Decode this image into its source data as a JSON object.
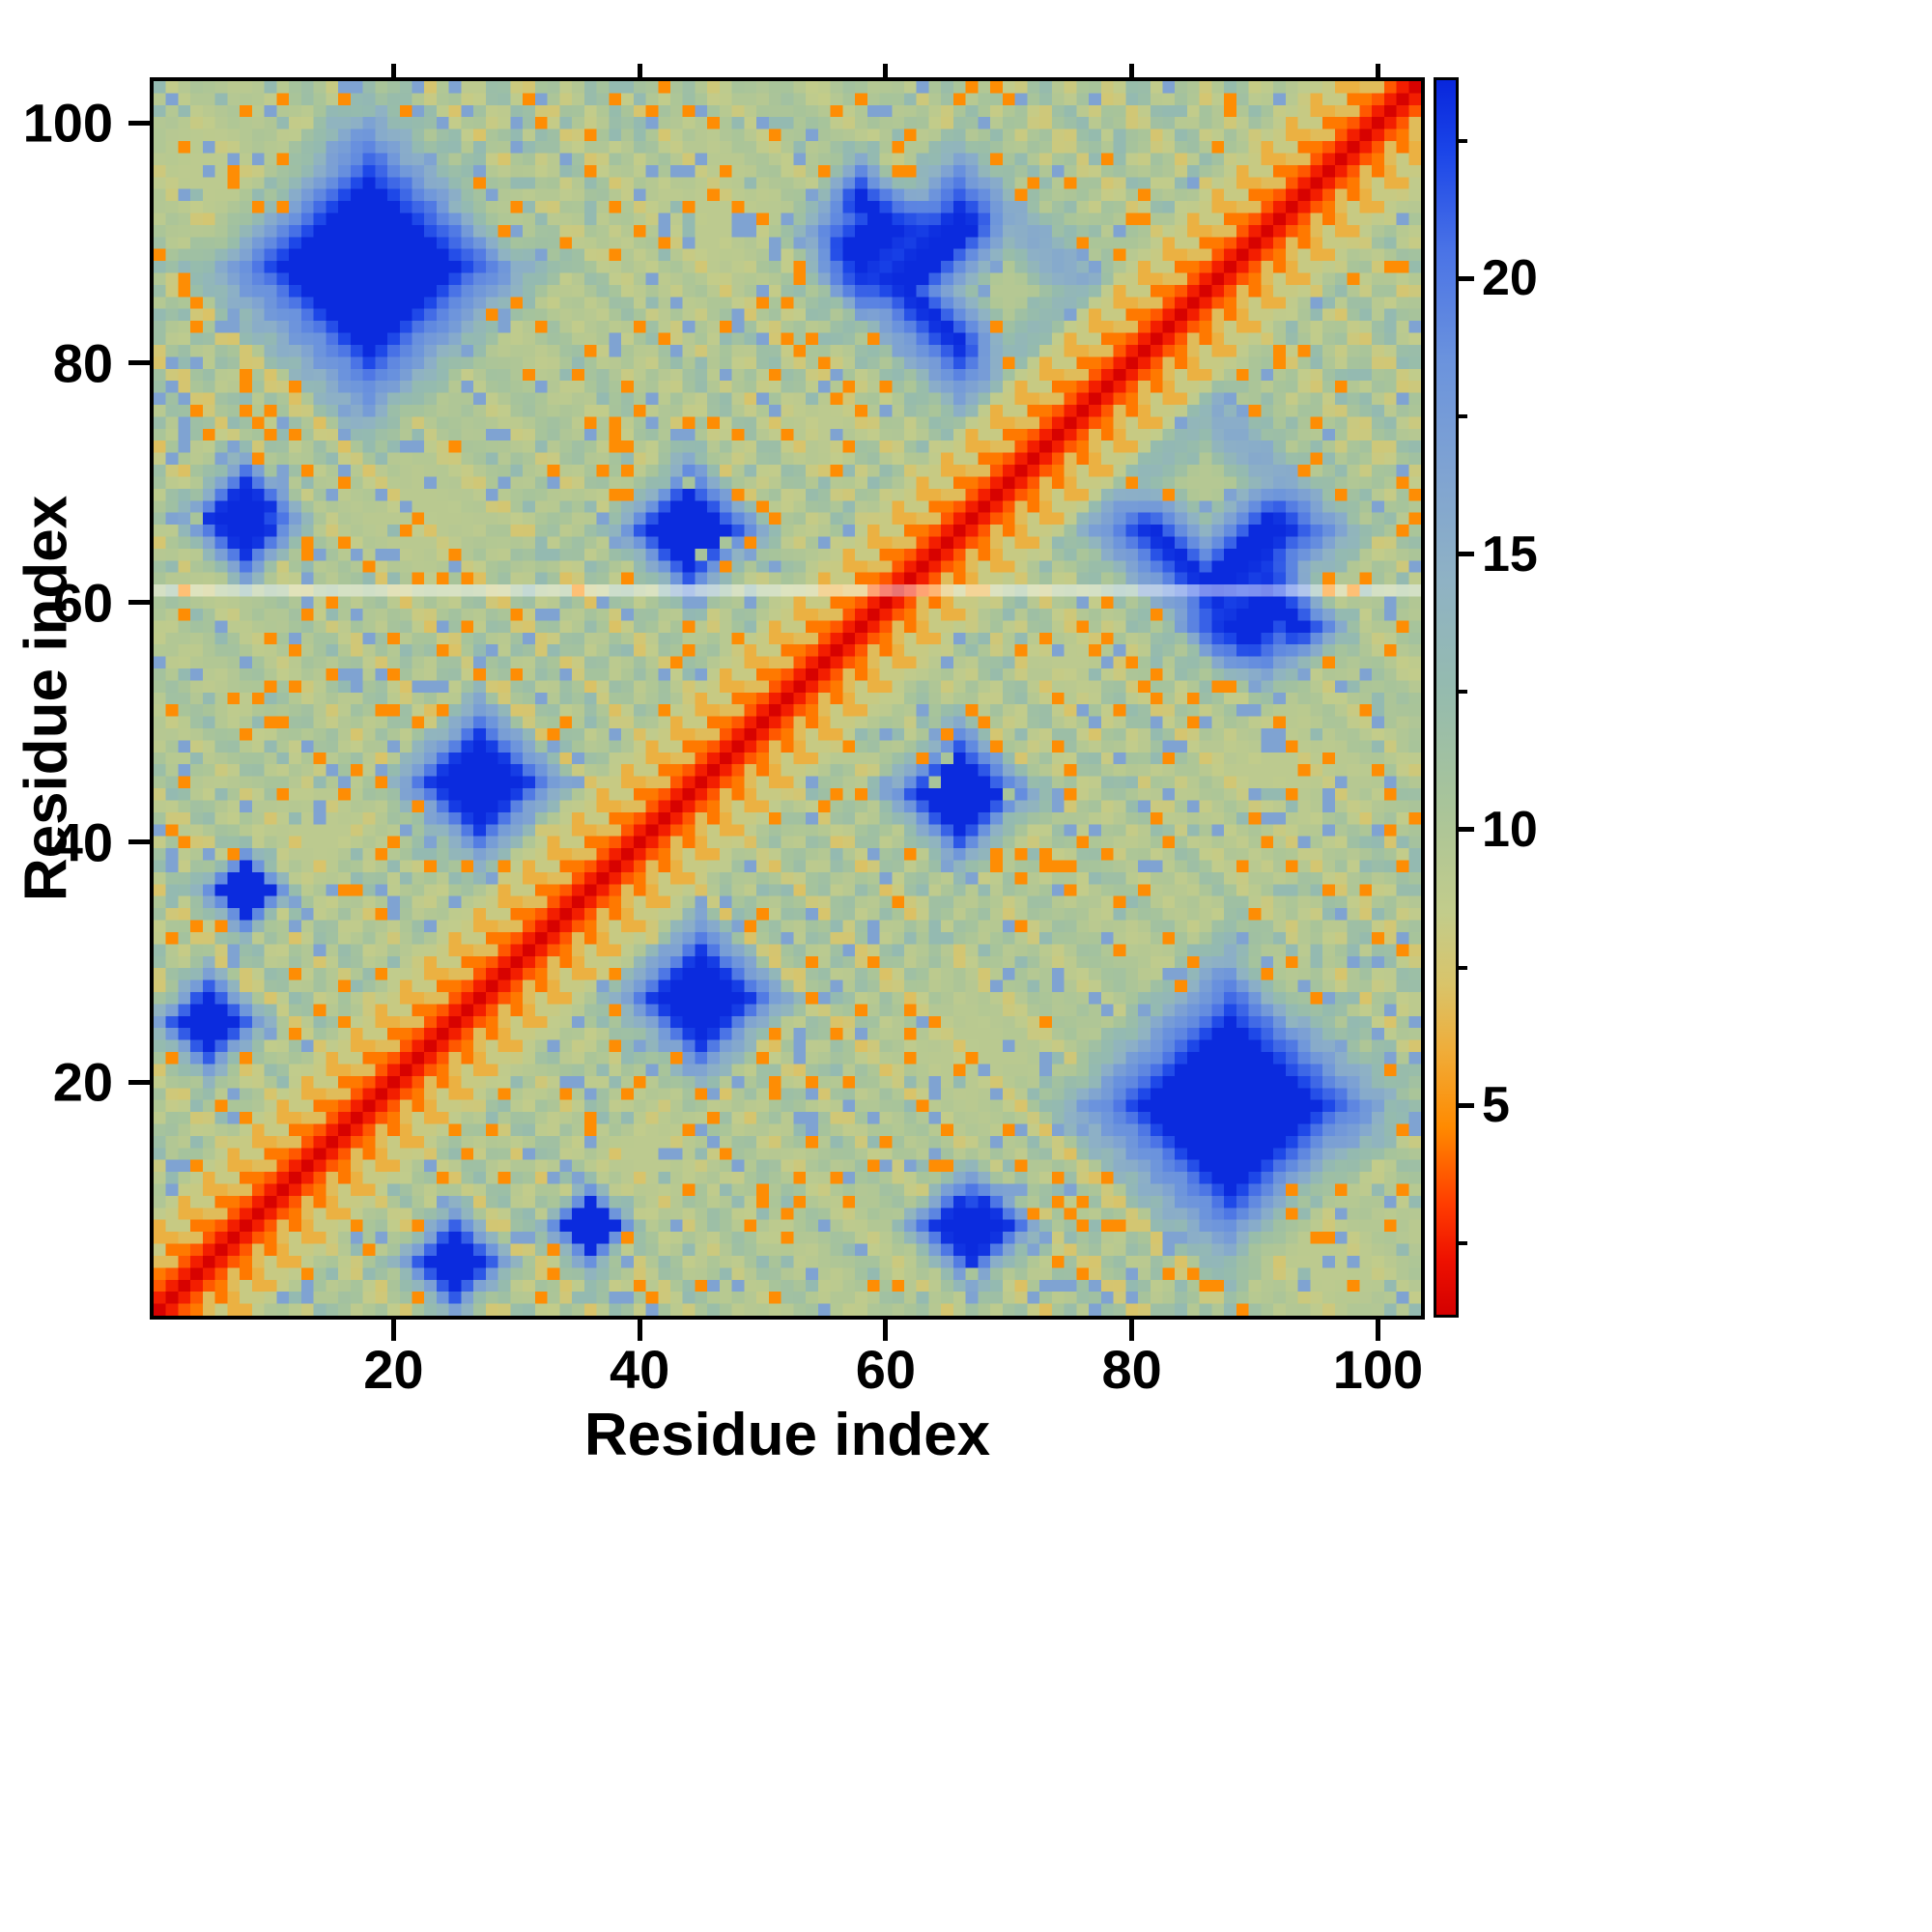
{
  "figure": {
    "background": "#ffffff"
  },
  "chart_data": {
    "type": "heatmap",
    "title": "",
    "xlabel": "Residue index",
    "ylabel": "Residue index",
    "x_range": [
      0.5,
      103.5
    ],
    "y_range": [
      0.5,
      103.5
    ],
    "x_ticks": [
      20,
      40,
      60,
      80,
      100
    ],
    "y_ticks": [
      20,
      40,
      60,
      80,
      100
    ],
    "grid": false,
    "legend": "colorbar-right",
    "colorbar": {
      "ticks": [
        5,
        10,
        15,
        20
      ],
      "minor_ticks": [
        2.5,
        7.5,
        12.5,
        17.5,
        22.5
      ],
      "vmin": 1.2,
      "vmax": 23.6,
      "orientation": "vertical",
      "stops": [
        {
          "v": 1.2,
          "c": "#d40000"
        },
        {
          "v": 2.2,
          "c": "#ee1100"
        },
        {
          "v": 3.2,
          "c": "#ff3c00"
        },
        {
          "v": 4.6,
          "c": "#ff8a00"
        },
        {
          "v": 6.0,
          "c": "#efAD3a"
        },
        {
          "v": 7.2,
          "c": "#d9c46a"
        },
        {
          "v": 8.5,
          "c": "#c2cc8b"
        },
        {
          "v": 10.5,
          "c": "#a8c49a"
        },
        {
          "v": 12.5,
          "c": "#95bbae"
        },
        {
          "v": 14.5,
          "c": "#8fb2c4"
        },
        {
          "v": 16.5,
          "c": "#7fa3d2"
        },
        {
          "v": 18.5,
          "c": "#6b93dd"
        },
        {
          "v": 20.5,
          "c": "#4a73e6"
        },
        {
          "v": 22.3,
          "c": "#1b45e8"
        },
        {
          "v": 23.6,
          "c": "#0826dc"
        }
      ]
    },
    "matrix": {
      "size": 103,
      "description": "Symmetric 103x103 residue-residue distance map: red band along the main diagonal (small separation), dashed orange near-diagonal contacts, pale-green/speckled mid-range field, and deep-blue diamond-shaped regions for distant residue pairs (values capped at colorbar max). A thin pale horizontal line crosses the map at residue 61.",
      "gap_row": 61,
      "params": {
        "near": {
          "range": 20,
          "v0": 1.3,
          "slope0": 1.2,
          "dashMod": 4,
          "dashOn": 2,
          "dashLow": 4.3,
          "dashHigh": 6.8,
          "dash2Low": 6.2,
          "dash2High": 8.2,
          "c": 7.4,
          "slope1": 1.25
        },
        "far": {
          "base": 9.8,
          "n1": 1.1,
          "f1": 1.7,
          "n2": 0.9,
          "f2": 0.83,
          "checker": 0.9
        },
        "blobV": 23.4,
        "blobSharp": 1.7,
        "blobs": [
          {
            "x": 27,
            "y": 45,
            "r": 9
          },
          {
            "x": 44,
            "y": 66,
            "r": 8
          },
          {
            "x": 18,
            "y": 88,
            "r": 17
          },
          {
            "x": 8,
            "y": 67,
            "r": 7
          },
          {
            "x": 66,
            "y": 87,
            "r": 14
          },
          {
            "x": 58,
            "y": 91,
            "r": 8
          },
          {
            "x": 5,
            "y": 25,
            "r": 6
          },
          {
            "x": 8,
            "y": 36,
            "r": 5
          }
        ],
        "contactSharp": 1.3,
        "contacts": [
          {
            "x": 5,
            "y": 96,
            "r": 11,
            "v": 9.0
          },
          {
            "x": 46,
            "y": 92,
            "r": 13,
            "v": 9.0
          },
          {
            "x": 22,
            "y": 67,
            "r": 13,
            "v": 9.2
          },
          {
            "x": 14,
            "y": 41,
            "r": 9,
            "v": 9.0
          },
          {
            "x": 70,
            "y": 86,
            "r": 8,
            "v": 9.5
          },
          {
            "x": 30,
            "y": 93,
            "r": 6,
            "v": 9.5
          },
          {
            "x": 55,
            "y": 75,
            "r": 7,
            "v": 9.0
          }
        ],
        "speckle": {
          "seed": 987654321,
          "minD": 8,
          "pOrange": 0.05,
          "orangeV": 4.7,
          "pLight": 0.11,
          "lightV": 16.5,
          "pPale": 0.16,
          "paleV": 12.8,
          "pGreenInBlue": 0.012,
          "greenV": 10.5
        }
      }
    }
  }
}
